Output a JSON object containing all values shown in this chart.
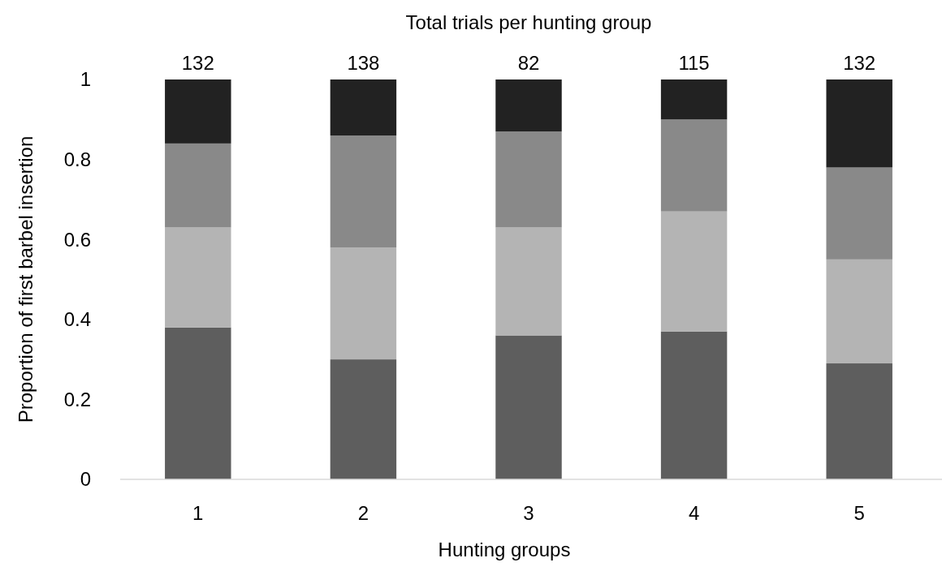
{
  "chart_data": {
    "type": "bar",
    "title": "Total trials per hunting group",
    "xlabel": "Hunting groups",
    "ylabel": "Proportion  of first barbel insertion",
    "categories": [
      "1",
      "2",
      "3",
      "4",
      "5"
    ],
    "stacked": true,
    "ylim": [
      0,
      1
    ],
    "yticks": [
      0,
      0.2,
      0.4,
      0.6,
      0.8,
      1
    ],
    "grid": false,
    "series": [
      {
        "color": "#5e5e5e",
        "values": [
          0.38,
          0.3,
          0.36,
          0.37,
          0.29
        ]
      },
      {
        "color": "#b4b4b4",
        "values": [
          0.25,
          0.28,
          0.27,
          0.3,
          0.26
        ]
      },
      {
        "color": "#898989",
        "values": [
          0.21,
          0.28,
          0.24,
          0.23,
          0.23
        ]
      },
      {
        "color": "#222222",
        "values": [
          0.16,
          0.14,
          0.13,
          0.1,
          0.22
        ]
      }
    ],
    "annotations": [
      {
        "text": "132",
        "x": "1",
        "y": 1
      },
      {
        "text": "138",
        "x": "2",
        "y": 1
      },
      {
        "text": "82",
        "x": "3",
        "y": 1
      },
      {
        "text": "115",
        "x": "4",
        "y": 1
      },
      {
        "text": "132",
        "x": "5",
        "y": 1
      }
    ]
  }
}
